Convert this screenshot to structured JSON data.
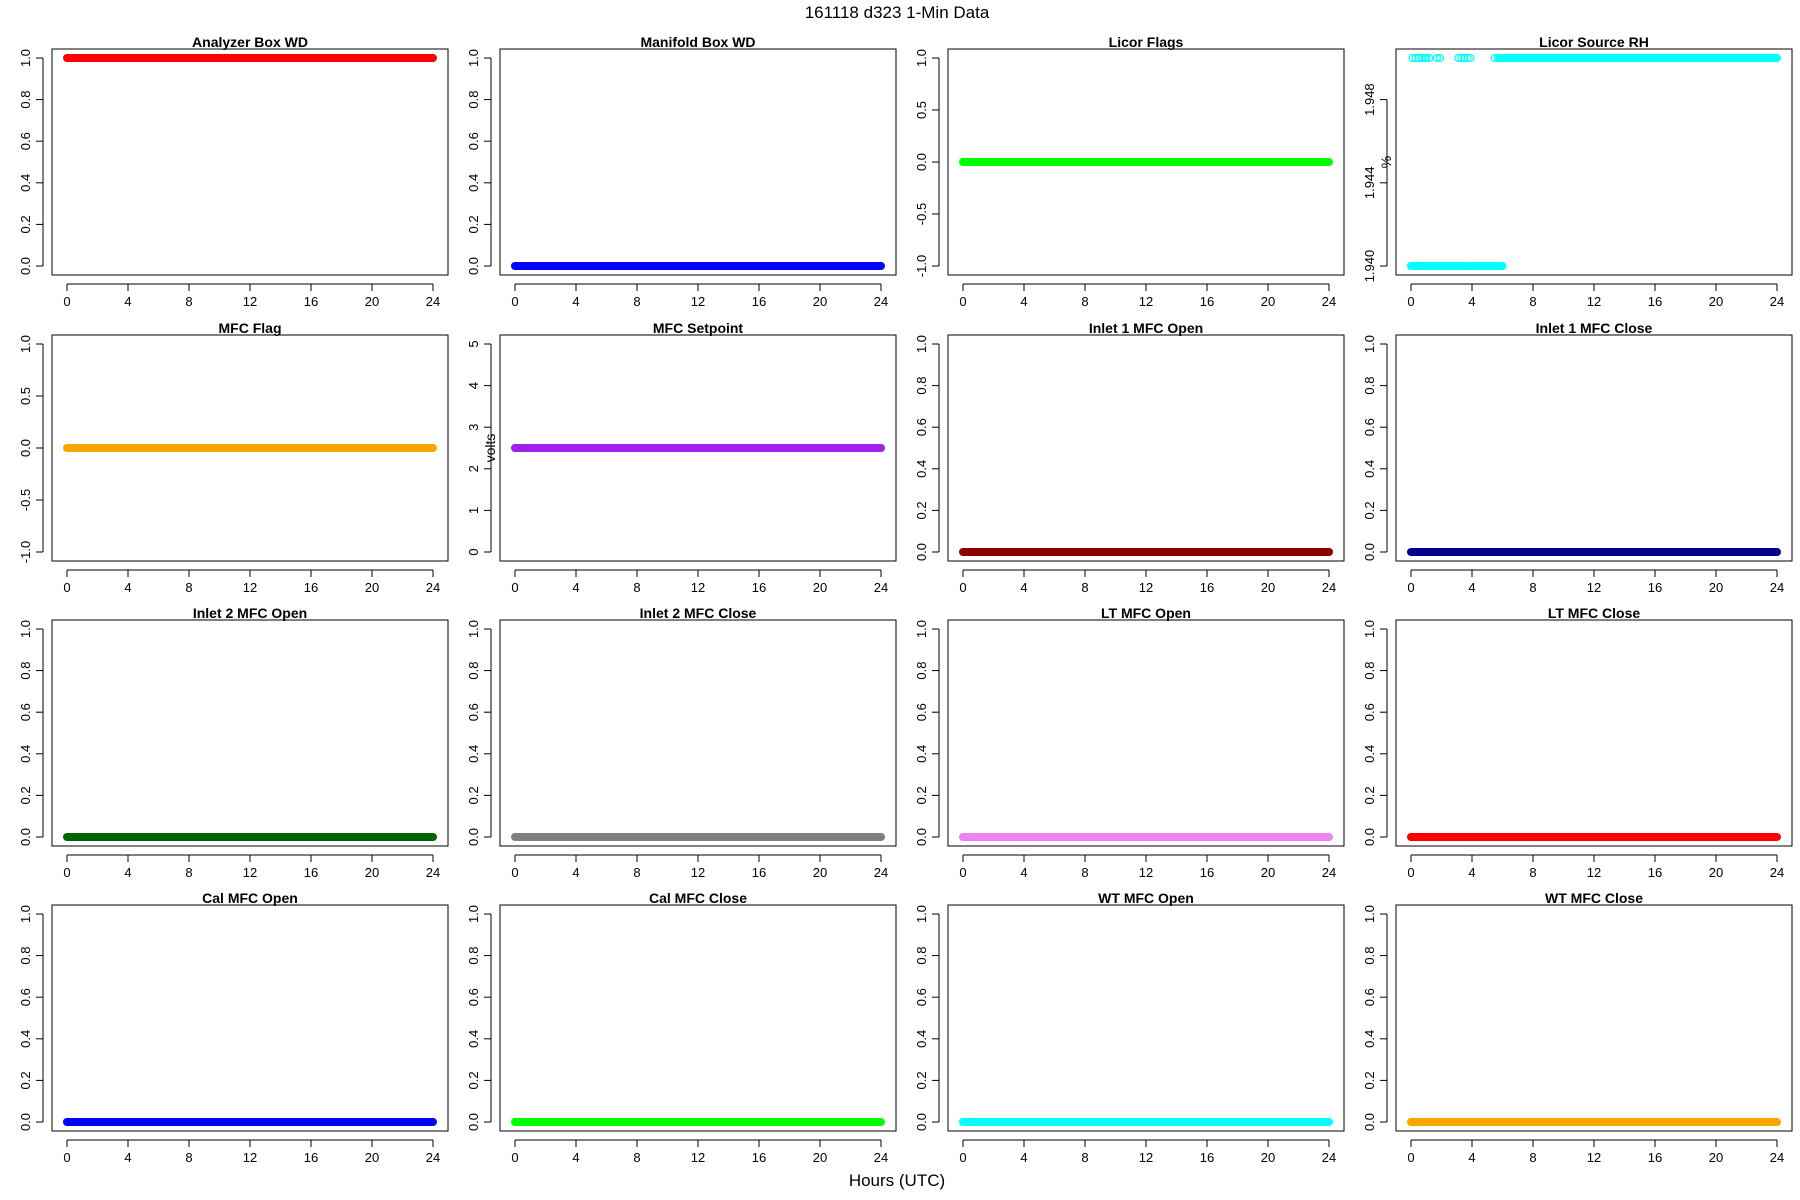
{
  "figure": {
    "title": "161118   d323   1-Min Data",
    "xlabel": "Hours (UTC)"
  },
  "chart_data": [
    {
      "type": "scatter",
      "title": "Analyzer Box WD",
      "ylabel": "",
      "xlim": [
        0,
        24
      ],
      "xticks": [
        "0",
        "4",
        "8",
        "12",
        "16",
        "20",
        "24"
      ],
      "ylim": [
        0,
        1
      ],
      "yticks": [
        "0.0",
        "0.2",
        "0.4",
        "0.6",
        "0.8",
        "1.0"
      ],
      "grid": false,
      "color": "#ff0000",
      "series": [
        {
          "segments": [
            {
              "x0": 0,
              "x1": 24,
              "y": 1.0
            }
          ]
        }
      ]
    },
    {
      "type": "scatter",
      "title": "Manifold Box WD",
      "ylabel": "",
      "xlim": [
        0,
        24
      ],
      "xticks": [
        "0",
        "4",
        "8",
        "12",
        "16",
        "20",
        "24"
      ],
      "ylim": [
        0,
        1
      ],
      "yticks": [
        "0.0",
        "0.2",
        "0.4",
        "0.6",
        "0.8",
        "1.0"
      ],
      "grid": false,
      "color": "#0000ff",
      "series": [
        {
          "segments": [
            {
              "x0": 0,
              "x1": 24,
              "y": 0.0
            }
          ]
        }
      ]
    },
    {
      "type": "scatter",
      "title": "Licor Flags",
      "ylabel": "",
      "xlim": [
        0,
        24
      ],
      "xticks": [
        "0",
        "4",
        "8",
        "12",
        "16",
        "20",
        "24"
      ],
      "ylim": [
        -1,
        1
      ],
      "yticks": [
        "-1.0",
        "-0.5",
        "0.0",
        "0.5",
        "1.0"
      ],
      "grid": false,
      "color": "#00ff00",
      "series": [
        {
          "segments": [
            {
              "x0": 0,
              "x1": 24,
              "y": 0.0
            }
          ]
        }
      ]
    },
    {
      "type": "scatter",
      "title": "Licor Source RH",
      "ylabel": "%",
      "xlim": [
        0,
        24
      ],
      "xticks": [
        "0",
        "4",
        "8",
        "12",
        "16",
        "20",
        "24"
      ],
      "ylim": [
        1.94,
        1.95
      ],
      "yticks": [
        "1.940",
        "1.944",
        "1.948"
      ],
      "grid": false,
      "color": "#00ffff",
      "series": [
        {
          "segments": [
            {
              "x0": 0,
              "x1": 3.6,
              "y": 1.94
            },
            {
              "x0": 3.8,
              "x1": 6.0,
              "y": 1.94
            },
            {
              "x0": 5.8,
              "x1": 24,
              "y": 1.95
            }
          ],
          "points": [
            {
              "x": 0.1,
              "y": 1.95
            },
            {
              "x": 0.3,
              "y": 1.95
            },
            {
              "x": 0.5,
              "y": 1.95
            },
            {
              "x": 0.7,
              "y": 1.95
            },
            {
              "x": 0.9,
              "y": 1.95
            },
            {
              "x": 1.0,
              "y": 1.95
            },
            {
              "x": 1.2,
              "y": 1.95
            },
            {
              "x": 1.7,
              "y": 1.95
            },
            {
              "x": 1.9,
              "y": 1.95
            },
            {
              "x": 3.1,
              "y": 1.95
            },
            {
              "x": 3.3,
              "y": 1.95
            },
            {
              "x": 3.5,
              "y": 1.95
            },
            {
              "x": 3.7,
              "y": 1.95
            },
            {
              "x": 3.9,
              "y": 1.95
            },
            {
              "x": 5.5,
              "y": 1.95
            },
            {
              "x": 5.7,
              "y": 1.95
            }
          ]
        }
      ]
    },
    {
      "type": "scatter",
      "title": "MFC Flag",
      "ylabel": "",
      "xlim": [
        0,
        24
      ],
      "xticks": [
        "0",
        "4",
        "8",
        "12",
        "16",
        "20",
        "24"
      ],
      "ylim": [
        -1,
        1
      ],
      "yticks": [
        "-1.0",
        "-0.5",
        "0.0",
        "0.5",
        "1.0"
      ],
      "grid": false,
      "color": "#ffa500",
      "series": [
        {
          "segments": [
            {
              "x0": 0,
              "x1": 24,
              "y": 0.0
            }
          ]
        }
      ]
    },
    {
      "type": "scatter",
      "title": "MFC Setpoint",
      "ylabel": "volts",
      "xlim": [
        0,
        24
      ],
      "xticks": [
        "0",
        "4",
        "8",
        "12",
        "16",
        "20",
        "24"
      ],
      "ylim": [
        0,
        5
      ],
      "yticks": [
        "0",
        "1",
        "2",
        "3",
        "4",
        "5"
      ],
      "grid": false,
      "color": "#a020f0",
      "series": [
        {
          "segments": [
            {
              "x0": 0,
              "x1": 24,
              "y": 2.5
            }
          ]
        }
      ]
    },
    {
      "type": "scatter",
      "title": "Inlet 1 MFC Open",
      "ylabel": "",
      "xlim": [
        0,
        24
      ],
      "xticks": [
        "0",
        "4",
        "8",
        "12",
        "16",
        "20",
        "24"
      ],
      "ylim": [
        0,
        1
      ],
      "yticks": [
        "0.0",
        "0.2",
        "0.4",
        "0.6",
        "0.8",
        "1.0"
      ],
      "grid": false,
      "color": "#8b0000",
      "series": [
        {
          "segments": [
            {
              "x0": 0,
              "x1": 24,
              "y": 0.0
            }
          ]
        }
      ]
    },
    {
      "type": "scatter",
      "title": "Inlet 1 MFC Close",
      "ylabel": "",
      "xlim": [
        0,
        24
      ],
      "xticks": [
        "0",
        "4",
        "8",
        "12",
        "16",
        "20",
        "24"
      ],
      "ylim": [
        0,
        1
      ],
      "yticks": [
        "0.0",
        "0.2",
        "0.4",
        "0.6",
        "0.8",
        "1.0"
      ],
      "grid": false,
      "color": "#00008b",
      "series": [
        {
          "segments": [
            {
              "x0": 0,
              "x1": 24,
              "y": 0.0
            }
          ]
        }
      ]
    },
    {
      "type": "scatter",
      "title": "Inlet 2 MFC Open",
      "ylabel": "",
      "xlim": [
        0,
        24
      ],
      "xticks": [
        "0",
        "4",
        "8",
        "12",
        "16",
        "20",
        "24"
      ],
      "ylim": [
        0,
        1
      ],
      "yticks": [
        "0.0",
        "0.2",
        "0.4",
        "0.6",
        "0.8",
        "1.0"
      ],
      "grid": false,
      "color": "#006400",
      "series": [
        {
          "segments": [
            {
              "x0": 0,
              "x1": 24,
              "y": 0.0
            }
          ]
        }
      ]
    },
    {
      "type": "scatter",
      "title": "Inlet 2 MFC Close",
      "ylabel": "",
      "xlim": [
        0,
        24
      ],
      "xticks": [
        "0",
        "4",
        "8",
        "12",
        "16",
        "20",
        "24"
      ],
      "ylim": [
        0,
        1
      ],
      "yticks": [
        "0.0",
        "0.2",
        "0.4",
        "0.6",
        "0.8",
        "1.0"
      ],
      "grid": false,
      "color": "#808080",
      "series": [
        {
          "segments": [
            {
              "x0": 0,
              "x1": 24,
              "y": 0.0
            }
          ]
        }
      ]
    },
    {
      "type": "scatter",
      "title": "LT MFC Open",
      "ylabel": "",
      "xlim": [
        0,
        24
      ],
      "xticks": [
        "0",
        "4",
        "8",
        "12",
        "16",
        "20",
        "24"
      ],
      "ylim": [
        0,
        1
      ],
      "yticks": [
        "0.0",
        "0.2",
        "0.4",
        "0.6",
        "0.8",
        "1.0"
      ],
      "grid": false,
      "color": "#ee82ee",
      "series": [
        {
          "segments": [
            {
              "x0": 0,
              "x1": 24,
              "y": 0.0
            }
          ]
        }
      ]
    },
    {
      "type": "scatter",
      "title": "LT MFC Close",
      "ylabel": "",
      "xlim": [
        0,
        24
      ],
      "xticks": [
        "0",
        "4",
        "8",
        "12",
        "16",
        "20",
        "24"
      ],
      "ylim": [
        0,
        1
      ],
      "yticks": [
        "0.0",
        "0.2",
        "0.4",
        "0.6",
        "0.8",
        "1.0"
      ],
      "grid": false,
      "color": "#ff0000",
      "series": [
        {
          "segments": [
            {
              "x0": 0,
              "x1": 24,
              "y": 0.0
            }
          ]
        }
      ]
    },
    {
      "type": "scatter",
      "title": "Cal MFC Open",
      "ylabel": "",
      "xlim": [
        0,
        24
      ],
      "xticks": [
        "0",
        "4",
        "8",
        "12",
        "16",
        "20",
        "24"
      ],
      "ylim": [
        0,
        1
      ],
      "yticks": [
        "0.0",
        "0.2",
        "0.4",
        "0.6",
        "0.8",
        "1.0"
      ],
      "grid": false,
      "color": "#0000ff",
      "series": [
        {
          "segments": [
            {
              "x0": 0,
              "x1": 24,
              "y": 0.0
            }
          ]
        }
      ]
    },
    {
      "type": "scatter",
      "title": "Cal MFC Close",
      "ylabel": "",
      "xlim": [
        0,
        24
      ],
      "xticks": [
        "0",
        "4",
        "8",
        "12",
        "16",
        "20",
        "24"
      ],
      "ylim": [
        0,
        1
      ],
      "yticks": [
        "0.0",
        "0.2",
        "0.4",
        "0.6",
        "0.8",
        "1.0"
      ],
      "grid": false,
      "color": "#00ff00",
      "series": [
        {
          "segments": [
            {
              "x0": 0,
              "x1": 24,
              "y": 0.0
            }
          ]
        }
      ]
    },
    {
      "type": "scatter",
      "title": "WT MFC Open",
      "ylabel": "",
      "xlim": [
        0,
        24
      ],
      "xticks": [
        "0",
        "4",
        "8",
        "12",
        "16",
        "20",
        "24"
      ],
      "ylim": [
        0,
        1
      ],
      "yticks": [
        "0.0",
        "0.2",
        "0.4",
        "0.6",
        "0.8",
        "1.0"
      ],
      "grid": false,
      "color": "#00ffff",
      "series": [
        {
          "segments": [
            {
              "x0": 0,
              "x1": 24,
              "y": 0.0
            }
          ]
        }
      ]
    },
    {
      "type": "scatter",
      "title": "WT MFC Close",
      "ylabel": "",
      "xlim": [
        0,
        24
      ],
      "xticks": [
        "0",
        "4",
        "8",
        "12",
        "16",
        "20",
        "24"
      ],
      "ylim": [
        0,
        1
      ],
      "yticks": [
        "0.0",
        "0.2",
        "0.4",
        "0.6",
        "0.8",
        "1.0"
      ],
      "grid": false,
      "color": "#ffa500",
      "series": [
        {
          "segments": [
            {
              "x0": 0,
              "x1": 24,
              "y": 0.0
            }
          ]
        }
      ]
    }
  ]
}
